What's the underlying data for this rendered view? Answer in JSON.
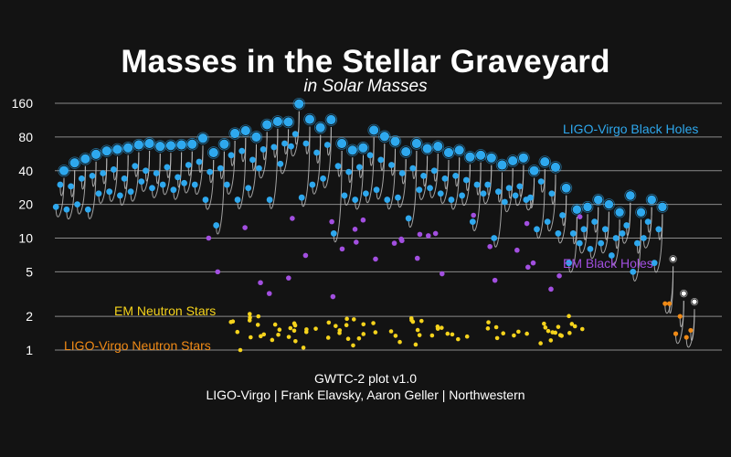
{
  "colors": {
    "background": "#131313",
    "grid": "#8a8a8a",
    "ligo_bh": "#2ea8ee",
    "em_bh": "#a24fe0",
    "em_ns": "#f5d31c",
    "ligo_ns": "#f08a16",
    "remnant_white": "#ffffff",
    "merger_arrow": "#bbbbbb"
  },
  "chart_data": {
    "type": "scatter",
    "title": "Masses in the Stellar Graveyard",
    "subtitle": "in Solar Masses",
    "yscale": "log",
    "ylim": [
      0.85,
      190
    ],
    "yticks": [
      1,
      2,
      5,
      10,
      20,
      40,
      80,
      160
    ],
    "ytick_labels": [
      "1",
      "2",
      "5",
      "10",
      "20",
      "40",
      "80",
      "160"
    ],
    "grid": true,
    "legend": [
      {
        "label": "LIGO-Virgo Black Holes",
        "color": "#2ea8ee"
      },
      {
        "label": "EM Black Holes",
        "color": "#a24fe0"
      },
      {
        "label": "EM Neutron Stars",
        "color": "#f5d31c"
      },
      {
        "label": "LIGO-Virgo Neutron Stars",
        "color": "#f08a16"
      }
    ],
    "ligo_mergers": [
      [
        40,
        30,
        19
      ],
      [
        47,
        29,
        18
      ],
      [
        51,
        34,
        20
      ],
      [
        56,
        36,
        18
      ],
      [
        60,
        38,
        25
      ],
      [
        62,
        41,
        26
      ],
      [
        64,
        34,
        24
      ],
      [
        68,
        44,
        26
      ],
      [
        70,
        40,
        32
      ],
      [
        66,
        38,
        28
      ],
      [
        67,
        43,
        30
      ],
      [
        68,
        35,
        27
      ],
      [
        69,
        45,
        31
      ],
      [
        78,
        48,
        30
      ],
      [
        58,
        39,
        22
      ],
      [
        69,
        42,
        13
      ],
      [
        86,
        55,
        30
      ],
      [
        91,
        60,
        22
      ],
      [
        80,
        50,
        28
      ],
      [
        103,
        62,
        42
      ],
      [
        110,
        65,
        22
      ],
      [
        109,
        70,
        46
      ],
      [
        158,
        85,
        66
      ],
      [
        115,
        70,
        23
      ],
      [
        97,
        58,
        30
      ],
      [
        114,
        68,
        34
      ],
      [
        70,
        44,
        11
      ],
      [
        61,
        39,
        24
      ],
      [
        64,
        43,
        22
      ],
      [
        92,
        55,
        25
      ],
      [
        81,
        50,
        27
      ],
      [
        73,
        45,
        22
      ],
      [
        59,
        38,
        23
      ],
      [
        70,
        42,
        15
      ],
      [
        63,
        36,
        27
      ],
      [
        66,
        40,
        28
      ],
      [
        58,
        34,
        25
      ],
      [
        61,
        36,
        22
      ],
      [
        53,
        33,
        24
      ],
      [
        55,
        30,
        14
      ],
      [
        52,
        30,
        25
      ],
      [
        45,
        26,
        10
      ],
      [
        49,
        28,
        21
      ],
      [
        52,
        29,
        24
      ],
      [
        40,
        23,
        22
      ],
      [
        48,
        32,
        12
      ],
      [
        43,
        25,
        14
      ],
      [
        28,
        16,
        11
      ],
      [
        18,
        11,
        6
      ],
      [
        19,
        12,
        9
      ],
      [
        22,
        14,
        8
      ],
      [
        20,
        12,
        9
      ],
      [
        17,
        10,
        7
      ],
      [
        24,
        13,
        11
      ],
      [
        17,
        9,
        5
      ],
      [
        22,
        14,
        10
      ],
      [
        19,
        12,
        6
      ],
      [
        6.5,
        2.6,
        2.6
      ],
      [
        3.2,
        2.0,
        1.4
      ],
      [
        2.7,
        1.5,
        1.3
      ]
    ],
    "em_black_holes": [
      6.5,
      7.0,
      7.8,
      8.4,
      9.0,
      9.5,
      9.8,
      10.0,
      10.5,
      11.0,
      12.0,
      13.5,
      14.0,
      14.5,
      15.0,
      15.5,
      16.0,
      6.0,
      5.5,
      5.0,
      4.8,
      4.6,
      4.4,
      4.2,
      4.0,
      3.5,
      3.2,
      3.0,
      6.6,
      8.0,
      9.2,
      10.8,
      12.4
    ],
    "em_neutron_stars": [
      1.0,
      1.1,
      1.15,
      1.2,
      1.22,
      1.25,
      1.28,
      1.3,
      1.32,
      1.34,
      1.35,
      1.36,
      1.38,
      1.4,
      1.42,
      1.44,
      1.45,
      1.46,
      1.48,
      1.5,
      1.52,
      1.54,
      1.55,
      1.56,
      1.58,
      1.6,
      1.62,
      1.64,
      1.66,
      1.68,
      1.7,
      1.72,
      1.74,
      1.76,
      1.78,
      1.8,
      1.82,
      1.85,
      1.88,
      1.9,
      1.95,
      2.0,
      2.01,
      2.1,
      1.05,
      1.12,
      1.18,
      1.26,
      1.33,
      1.39,
      1.43,
      1.47,
      1.53,
      1.57,
      1.63,
      1.67,
      1.73,
      1.79,
      1.84,
      1.92,
      1.27,
      1.37,
      1.41,
      1.49,
      1.51,
      1.59,
      1.61,
      1.69,
      1.71,
      1.77,
      1.23,
      1.31,
      1.44,
      1.35,
      1.38,
      1.4,
      1.36,
      1.42,
      1.34,
      1.45,
      1.29,
      1.55
    ]
  },
  "labels": {
    "ligo_bh": "LIGO-Virgo Black Holes",
    "em_bh": "EM Black Holes",
    "em_ns": "EM Neutron Stars",
    "ligo_ns": "LIGO-Virgo Neutron Stars"
  },
  "credits": {
    "line1": "GWTC-2 plot v1.0",
    "line2": "LIGO-Virgo | Frank Elavsky, Aaron Geller | Northwestern"
  }
}
